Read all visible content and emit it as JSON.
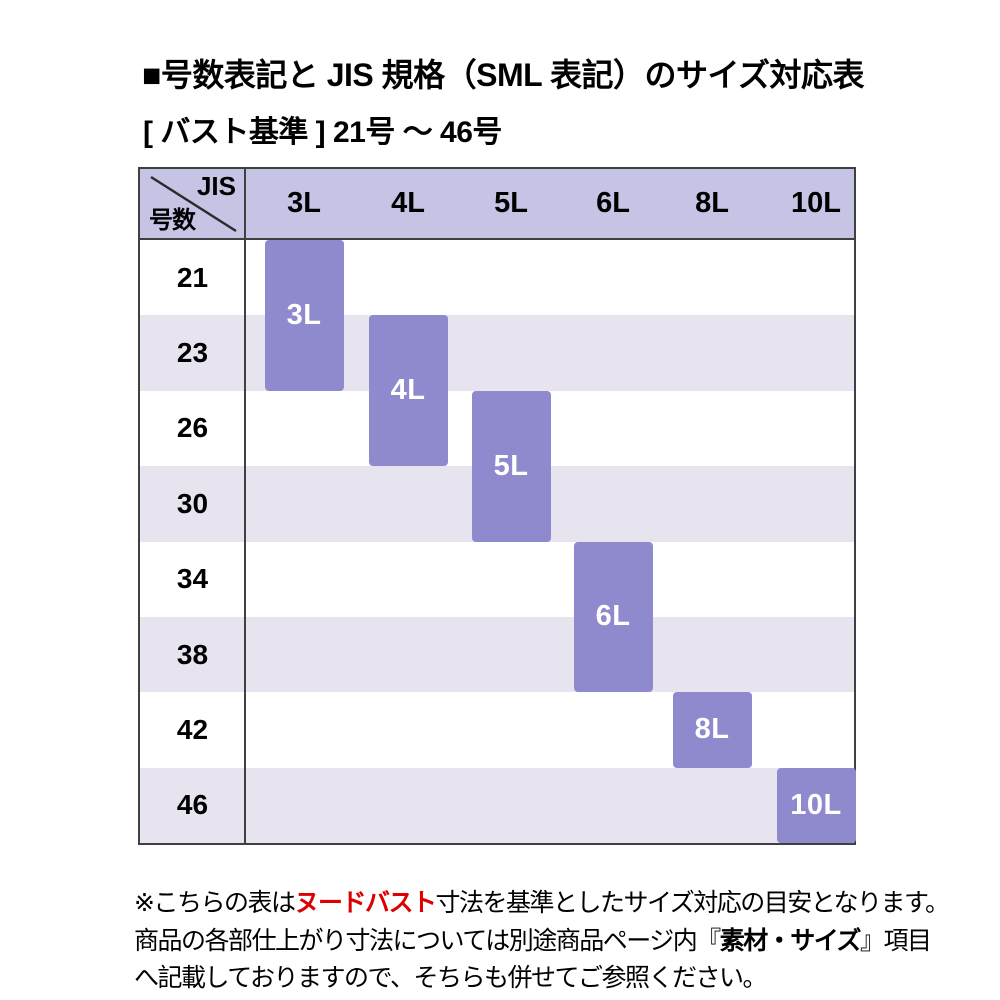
{
  "title": "■号数表記と JIS 規格（SML 表記）のサイズ対応表",
  "subtitle": "[ バスト基準 ] 21号 ～ 46号",
  "table": {
    "corner": {
      "top_right": "JIS",
      "bottom_left": "号数"
    },
    "columns": [
      "3L",
      "4L",
      "5L",
      "6L",
      "8L",
      "10L"
    ],
    "rows": [
      "21",
      "23",
      "26",
      "30",
      "34",
      "38",
      "42",
      "46"
    ],
    "blocks": [
      {
        "label": "3L",
        "col": 0,
        "row_start": "21",
        "row_end": "23"
      },
      {
        "label": "4L",
        "col": 1,
        "row_start": "23",
        "row_end": "26"
      },
      {
        "label": "5L",
        "col": 2,
        "row_start": "26",
        "row_end": "30"
      },
      {
        "label": "6L",
        "col": 3,
        "row_start": "34",
        "row_end": "38"
      },
      {
        "label": "8L",
        "col": 4,
        "row_start": "42",
        "row_end": "42"
      },
      {
        "label": "10L",
        "col": 5,
        "row_start": "46",
        "row_end": "46"
      }
    ]
  },
  "footnote": {
    "line1_pre": "※こちらの表は",
    "line1_highlight": "ヌードバスト",
    "line1_post": "寸法を基準としたサイズ対応の目安となります。",
    "line2_pre": "商品の各部仕上がり寸法については別途商品ページ内『",
    "line2_bold": "素材・サイズ",
    "line2_post": "』項目",
    "line3": "へ記載しておりますので、そちらも併せてご参照ください。"
  },
  "colors": {
    "header_bg": "#c6c4e5",
    "stripe_bg": "#e7e4ef",
    "block_bg": "#8f89cd",
    "block_text": "#ffffff",
    "border": "#404040",
    "highlight_red": "#dd0000",
    "text": "#000000"
  },
  "chart_data": {
    "type": "table",
    "title": "号数表記と JIS 規格（SML 表記）のサイズ対応表",
    "basis": "バスト基準 21号 ～ 46号",
    "column_axis_label": "JIS",
    "row_axis_label": "号数",
    "columns": [
      "3L",
      "4L",
      "5L",
      "6L",
      "8L",
      "10L"
    ],
    "rows": [
      21,
      23,
      26,
      30,
      34,
      38,
      42,
      46
    ],
    "mapping": [
      {
        "jis": "3L",
        "go_range": [
          21,
          23
        ]
      },
      {
        "jis": "4L",
        "go_range": [
          23,
          26
        ]
      },
      {
        "jis": "5L",
        "go_range": [
          26,
          30
        ]
      },
      {
        "jis": "6L",
        "go_range": [
          34,
          38
        ]
      },
      {
        "jis": "8L",
        "go_range": [
          42,
          42
        ]
      },
      {
        "jis": "10L",
        "go_range": [
          46,
          46
        ]
      }
    ]
  }
}
